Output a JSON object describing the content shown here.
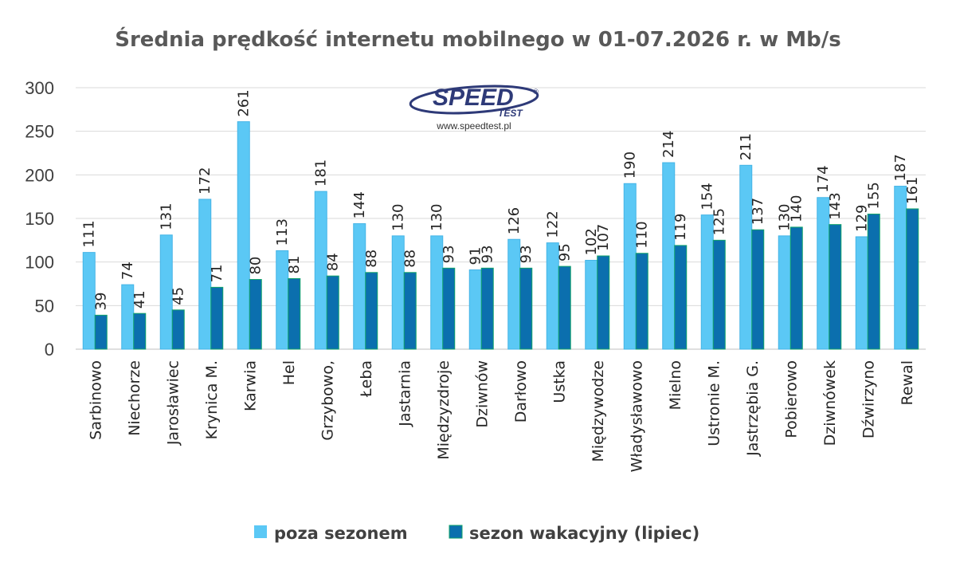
{
  "logo": {
    "brand_main": "SPEED",
    "brand_sub": "TEST",
    "url": "www.speedtest.pl"
  },
  "colors": {
    "off_season": "#5bc8f5",
    "off_season_stroke": "#45b4e6",
    "summer": "#0b6fae",
    "summer_stroke": "#11a36a",
    "grid": "#d9d9d9",
    "logo_blue": "#2e3a78"
  },
  "chart_data": {
    "type": "bar",
    "title": "Średnia prędkość internetu mobilnego w 01-07.2026 r. w Mb/s",
    "xlabel": "",
    "ylabel": "",
    "ylim": [
      0,
      300
    ],
    "yticks": [
      0,
      50,
      100,
      150,
      200,
      250,
      300
    ],
    "grid": true,
    "legend_position": "bottom",
    "categories": [
      "Sarbinowo",
      "Niechorze",
      "Jarosławiec",
      "Krynica M.",
      "Karwia",
      "Hel",
      "Grzybowo,",
      "Łeba",
      "Jastarnia",
      "Międzyzdroje",
      "Dziwnów",
      "Darłowo",
      "Ustka",
      "Międzywodze",
      "Władysławowo",
      "Mielno",
      "Ustronie M.",
      "Jastrzębia G.",
      "Pobierowo",
      "Dziwnówek",
      "Dźwirzyno",
      "Rewal"
    ],
    "series": [
      {
        "name": "poza sezonem",
        "values": [
          111,
          74,
          131,
          172,
          261,
          113,
          181,
          144,
          130,
          130,
          91,
          126,
          122,
          102,
          190,
          214,
          154,
          211,
          130,
          174,
          129,
          187
        ]
      },
      {
        "name": "sezon wakacyjny (lipiec)",
        "values": [
          39,
          41,
          45,
          71,
          80,
          81,
          84,
          88,
          88,
          93,
          93,
          93,
          95,
          107,
          110,
          119,
          125,
          137,
          140,
          143,
          155,
          161
        ]
      }
    ]
  }
}
